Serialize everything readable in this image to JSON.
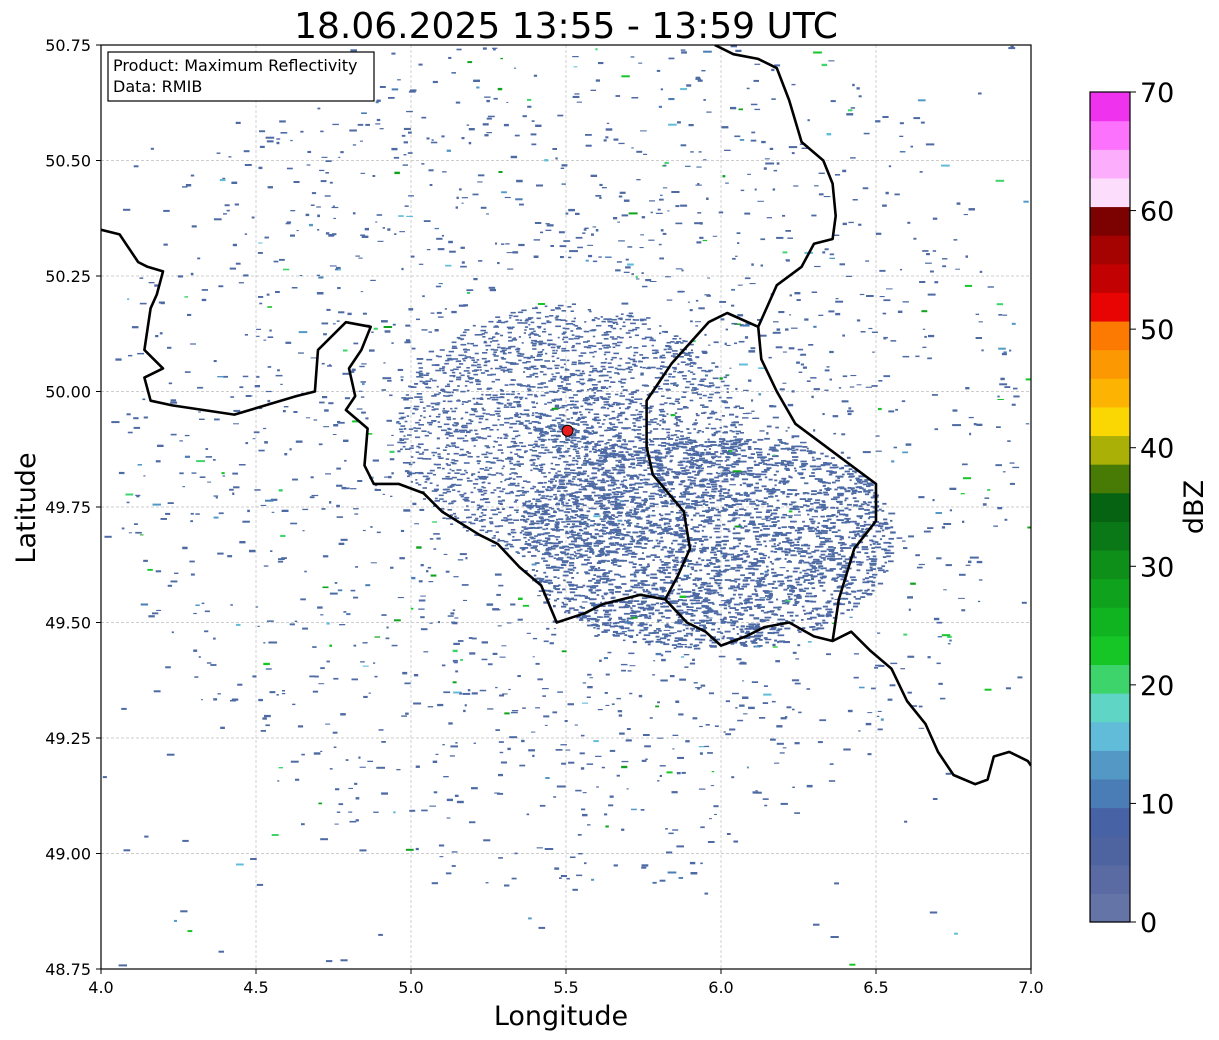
{
  "title": "18.06.2025 13:55 - 13:59 UTC",
  "info_box": {
    "product_line": "Product: Maximum Reflectivity",
    "data_line": "Data: RMIB"
  },
  "axes": {
    "xlabel": "Longitude",
    "ylabel": "Latitude",
    "xlim": [
      4.0,
      7.0
    ],
    "ylim": [
      48.75,
      50.75
    ],
    "xticks": [
      "4.0",
      "4.5",
      "5.0",
      "5.5",
      "6.0",
      "6.5",
      "7.0"
    ],
    "yticks": [
      "48.75",
      "49.00",
      "49.25",
      "49.50",
      "49.75",
      "50.00",
      "50.25",
      "50.50",
      "50.75"
    ],
    "grid": true
  },
  "colorbar": {
    "label": "dBZ",
    "range": [
      0,
      70
    ],
    "ticks": [
      "0",
      "10",
      "20",
      "30",
      "40",
      "50",
      "60",
      "70"
    ],
    "colors": [
      "#6474a6",
      "#5a6aa2",
      "#4e64a0",
      "#4762a5",
      "#4a7cb6",
      "#5499c6",
      "#60bcd8",
      "#5fd6c5",
      "#3dd46c",
      "#16c626",
      "#10b420",
      "#0fa21d",
      "#0e8f1a",
      "#0a7817",
      "#066312",
      "#487a06",
      "#aab006",
      "#fad603",
      "#fcb302",
      "#fc9802",
      "#fc7a02",
      "#e80402",
      "#c20202",
      "#a50202",
      "#7c0202",
      "#fcdefc",
      "#fcaefc",
      "#fc72fc",
      "#ee32ee"
    ]
  },
  "radar": {
    "site": [
      5.505,
      49.915
    ],
    "site_color": "#e41e1e",
    "echo_color": "#4d6aa4",
    "seed": 7
  },
  "borders": {
    "color": "#000000",
    "secondary_color": "#888888",
    "paths": [
      [
        [
          4.0,
          50.35
        ],
        [
          4.06,
          50.34
        ],
        [
          4.12,
          50.28
        ],
        [
          4.15,
          50.27
        ],
        [
          4.2,
          50.26
        ],
        [
          4.18,
          50.21
        ],
        [
          4.16,
          50.18
        ],
        [
          4.14,
          50.09
        ],
        [
          4.2,
          50.05
        ],
        [
          4.14,
          50.03
        ],
        [
          4.16,
          49.98
        ],
        [
          4.23,
          49.97
        ],
        [
          4.33,
          49.96
        ],
        [
          4.43,
          49.95
        ],
        [
          4.53,
          49.97
        ],
        [
          4.63,
          49.99
        ],
        [
          4.69,
          50.0
        ],
        [
          4.7,
          50.09
        ],
        [
          4.79,
          50.15
        ],
        [
          4.87,
          50.14
        ],
        [
          4.84,
          50.09
        ],
        [
          4.8,
          50.05
        ],
        [
          4.82,
          49.99
        ],
        [
          4.79,
          49.96
        ],
        [
          4.86,
          49.92
        ],
        [
          4.85,
          49.84
        ],
        [
          4.88,
          49.8
        ],
        [
          4.96,
          49.8
        ],
        [
          5.04,
          49.78
        ],
        [
          5.1,
          49.74
        ],
        [
          5.22,
          49.69
        ],
        [
          5.28,
          49.67
        ],
        [
          5.35,
          49.62
        ],
        [
          5.42,
          49.58
        ],
        [
          5.47,
          49.5
        ],
        [
          5.56,
          49.52
        ],
        [
          5.62,
          49.54
        ],
        [
          5.68,
          49.55
        ],
        [
          5.74,
          49.56
        ],
        [
          5.82,
          49.55
        ],
        [
          5.89,
          49.5
        ],
        [
          5.95,
          49.48
        ],
        [
          6.0,
          49.45
        ],
        [
          6.08,
          49.47
        ],
        [
          6.14,
          49.49
        ],
        [
          6.22,
          49.5
        ],
        [
          6.3,
          49.47
        ],
        [
          6.36,
          49.46
        ],
        [
          6.42,
          49.48
        ],
        [
          6.48,
          49.44
        ],
        [
          6.55,
          49.4
        ],
        [
          6.6,
          49.33
        ],
        [
          6.66,
          49.28
        ],
        [
          6.7,
          49.22
        ],
        [
          6.75,
          49.17
        ],
        [
          6.82,
          49.15
        ],
        [
          6.86,
          49.16
        ],
        [
          6.88,
          49.21
        ],
        [
          6.93,
          49.22
        ],
        [
          6.99,
          49.2
        ],
        [
          7.0,
          49.19
        ]
      ],
      [
        [
          5.82,
          49.55
        ],
        [
          5.86,
          49.6
        ],
        [
          5.9,
          49.66
        ],
        [
          5.88,
          49.74
        ],
        [
          5.78,
          49.82
        ],
        [
          5.76,
          49.88
        ],
        [
          5.76,
          49.98
        ],
        [
          5.84,
          50.06
        ],
        [
          5.96,
          50.15
        ],
        [
          6.02,
          50.17
        ],
        [
          6.12,
          50.14
        ],
        [
          6.14,
          50.17
        ],
        [
          6.18,
          50.23
        ],
        [
          6.26,
          50.27
        ],
        [
          6.3,
          50.32
        ],
        [
          6.36,
          50.33
        ],
        [
          6.37,
          50.38
        ],
        [
          6.36,
          50.45
        ],
        [
          6.33,
          50.5
        ],
        [
          6.26,
          50.54
        ],
        [
          6.22,
          50.63
        ],
        [
          6.18,
          50.7
        ],
        [
          6.12,
          50.72
        ],
        [
          6.04,
          50.73
        ],
        [
          5.98,
          50.75
        ]
      ],
      [
        [
          6.36,
          49.46
        ],
        [
          6.38,
          49.55
        ],
        [
          6.43,
          49.66
        ],
        [
          6.5,
          49.72
        ],
        [
          6.5,
          49.8
        ],
        [
          6.4,
          49.85
        ],
        [
          6.3,
          49.9
        ],
        [
          6.24,
          49.93
        ],
        [
          6.18,
          50.0
        ],
        [
          6.13,
          50.07
        ],
        [
          6.12,
          50.14
        ]
      ]
    ]
  }
}
